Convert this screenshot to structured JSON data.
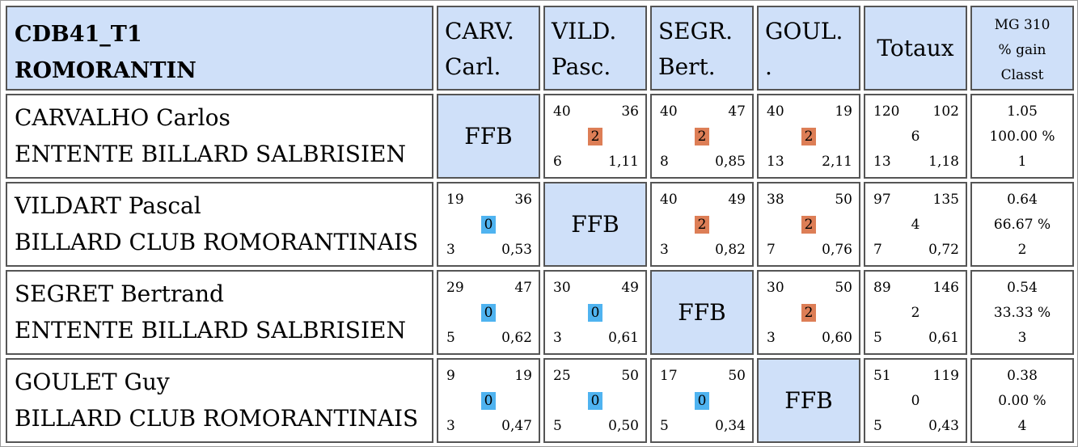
{
  "header": {
    "title_line1": "CDB41_T1",
    "title_line2": "ROMORANTIN",
    "columns": [
      {
        "line1": "CARV.",
        "line2": "Carl."
      },
      {
        "line1": "VILD.",
        "line2": "Pasc."
      },
      {
        "line1": "SEGR.",
        "line2": "Bert."
      },
      {
        "line1": "GOUL.",
        "line2": "."
      }
    ],
    "totals_label": "Totaux",
    "mg_line1": "MG 310",
    "mg_line2": "% gain",
    "mg_line3": "Classt"
  },
  "ffb_label": "FFB",
  "players": [
    {
      "name": "CARVALHO Carlos",
      "club": "ENTENTE BILLARD SALBRISIEN",
      "matches": [
        null,
        {
          "points": "40",
          "target": "36",
          "score": "2",
          "result": "win",
          "innings": "6",
          "avg": "1,11"
        },
        {
          "points": "40",
          "target": "47",
          "score": "2",
          "result": "win",
          "innings": "8",
          "avg": "0,85"
        },
        {
          "points": "40",
          "target": "19",
          "score": "2",
          "result": "win",
          "innings": "13",
          "avg": "2,11"
        }
      ],
      "totals": {
        "points": "120",
        "target": "102",
        "score": "6",
        "innings": "13",
        "avg": "1,18"
      },
      "mg": {
        "avg": "1.05",
        "pct": "100.00 %",
        "rank": "1"
      }
    },
    {
      "name": "VILDART Pascal",
      "club": "BILLARD CLUB ROMORANTINAIS",
      "matches": [
        {
          "points": "19",
          "target": "36",
          "score": "0",
          "result": "lose",
          "innings": "3",
          "avg": "0,53"
        },
        null,
        {
          "points": "40",
          "target": "49",
          "score": "2",
          "result": "win",
          "innings": "3",
          "avg": "0,82"
        },
        {
          "points": "38",
          "target": "50",
          "score": "2",
          "result": "win",
          "innings": "7",
          "avg": "0,76"
        }
      ],
      "totals": {
        "points": "97",
        "target": "135",
        "score": "4",
        "innings": "7",
        "avg": "0,72"
      },
      "mg": {
        "avg": "0.64",
        "pct": "66.67 %",
        "rank": "2"
      }
    },
    {
      "name": "SEGRET Bertrand",
      "club": "ENTENTE BILLARD SALBRISIEN",
      "matches": [
        {
          "points": "29",
          "target": "47",
          "score": "0",
          "result": "lose",
          "innings": "5",
          "avg": "0,62"
        },
        {
          "points": "30",
          "target": "49",
          "score": "0",
          "result": "lose",
          "innings": "3",
          "avg": "0,61"
        },
        null,
        {
          "points": "30",
          "target": "50",
          "score": "2",
          "result": "win",
          "innings": "3",
          "avg": "0,60"
        }
      ],
      "totals": {
        "points": "89",
        "target": "146",
        "score": "2",
        "innings": "5",
        "avg": "0,61"
      },
      "mg": {
        "avg": "0.54",
        "pct": "33.33 %",
        "rank": "3"
      }
    },
    {
      "name": "GOULET Guy",
      "club": "BILLARD CLUB ROMORANTINAIS",
      "matches": [
        {
          "points": "9",
          "target": "19",
          "score": "0",
          "result": "lose",
          "innings": "3",
          "avg": "0,47"
        },
        {
          "points": "25",
          "target": "50",
          "score": "0",
          "result": "lose",
          "innings": "5",
          "avg": "0,50"
        },
        {
          "points": "17",
          "target": "50",
          "score": "0",
          "result": "lose",
          "innings": "5",
          "avg": "0,34"
        },
        null
      ],
      "totals": {
        "points": "51",
        "target": "119",
        "score": "0",
        "innings": "5",
        "avg": "0,43"
      },
      "mg": {
        "avg": "0.38",
        "pct": "0.00 %",
        "rank": "4"
      }
    }
  ],
  "colors": {
    "header_bg": "#cfe0f9",
    "win": "#dd7e56",
    "lose": "#4fb3f0",
    "border": "#555555"
  }
}
